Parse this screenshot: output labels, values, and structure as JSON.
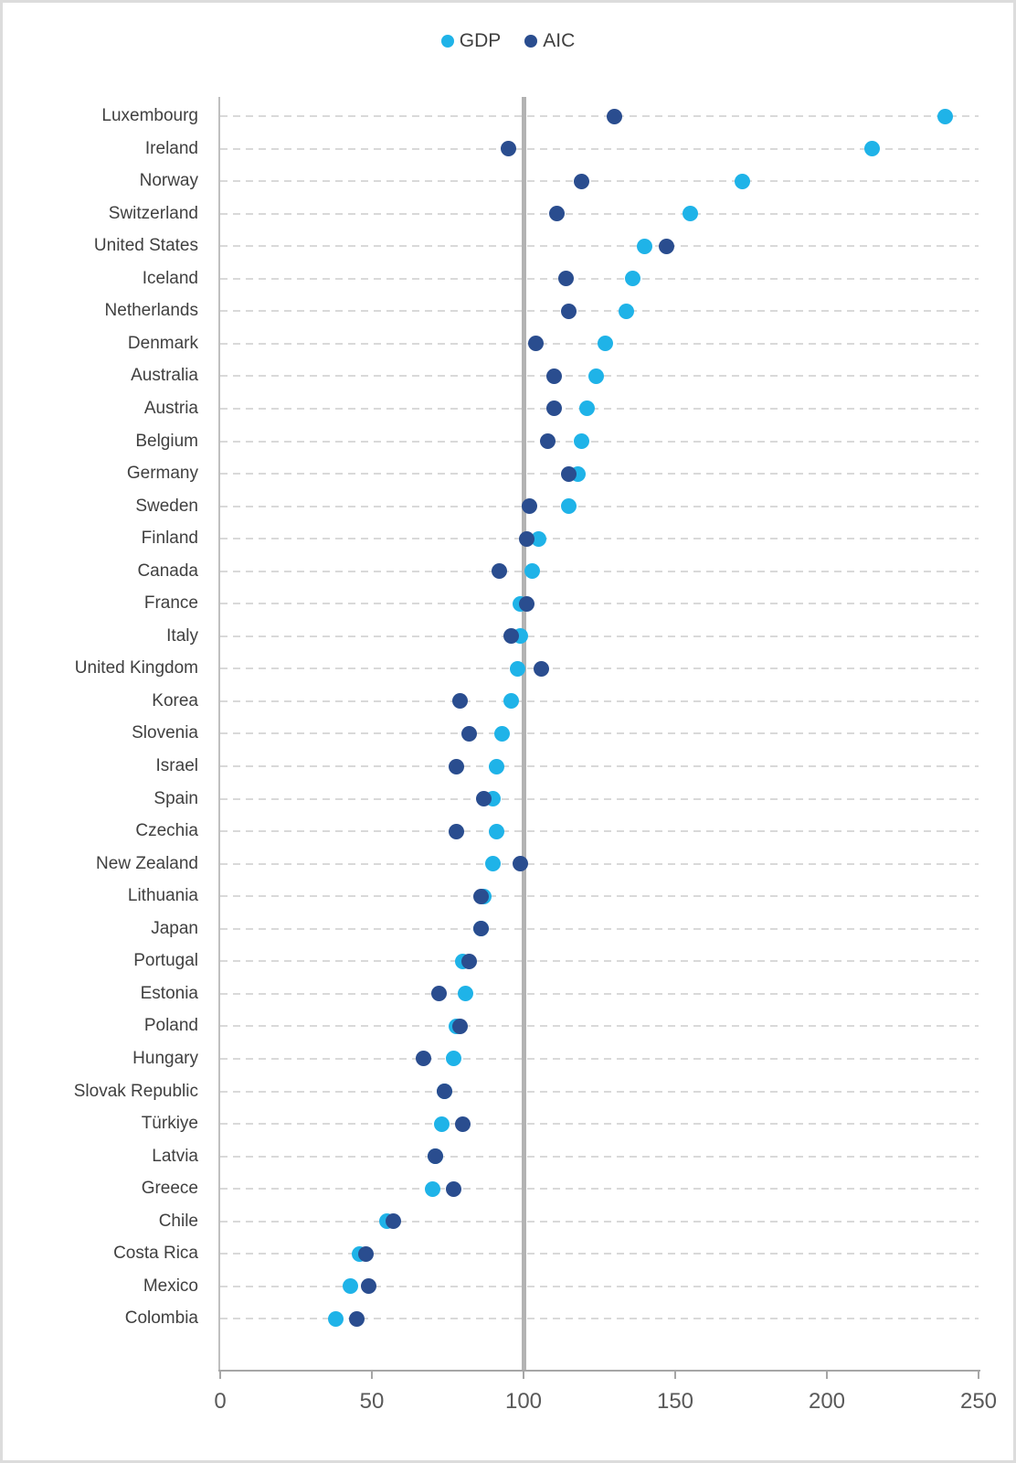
{
  "legend": {
    "items": [
      {
        "label": "GDP",
        "color": "#1fb3e8"
      },
      {
        "label": "AIC",
        "color": "#2a4d8f"
      }
    ]
  },
  "colors": {
    "gdp_dot": "#1fb3e8",
    "aic_dot": "#2a4d8f",
    "gridline": "#d9d9d9",
    "reference_line": "#b3b3b3",
    "axis": "#a6a6a6",
    "label_text": "#404040",
    "tick_text": "#595959"
  },
  "chart_data": {
    "type": "scatter",
    "title": "",
    "xlabel": "",
    "ylabel": "",
    "xlim": [
      0,
      250
    ],
    "xticks": [
      0,
      50,
      100,
      150,
      200,
      250
    ],
    "reference_line_x": 100,
    "grid": "horizontal dashed per category",
    "legend_position": "top-center",
    "categories": [
      "Luxembourg",
      "Ireland",
      "Norway",
      "Switzerland",
      "United States",
      "Iceland",
      "Netherlands",
      "Denmark",
      "Australia",
      "Austria",
      "Belgium",
      "Germany",
      "Sweden",
      "Finland",
      "Canada",
      "France",
      "Italy",
      "United Kingdom",
      "Korea",
      "Slovenia",
      "Israel",
      "Spain",
      "Czechia",
      "New Zealand",
      "Lithuania",
      "Japan",
      "Portugal",
      "Estonia",
      "Poland",
      "Hungary",
      "Slovak Republic",
      "Türkiye",
      "Latvia",
      "Greece",
      "Chile",
      "Costa Rica",
      "Mexico",
      "Colombia"
    ],
    "series": [
      {
        "name": "GDP",
        "color": "#1fb3e8",
        "values": [
          239,
          215,
          172,
          155,
          140,
          136,
          134,
          127,
          124,
          121,
          119,
          118,
          115,
          105,
          103,
          99,
          99,
          98,
          96,
          93,
          91,
          90,
          91,
          90,
          87,
          86,
          80,
          81,
          78,
          77,
          74,
          73,
          71,
          70,
          55,
          46,
          43,
          38
        ]
      },
      {
        "name": "AIC",
        "color": "#2a4d8f",
        "values": [
          130,
          95,
          119,
          111,
          147,
          114,
          115,
          104,
          110,
          110,
          108,
          115,
          102,
          101,
          92,
          101,
          96,
          106,
          79,
          82,
          78,
          87,
          78,
          99,
          86,
          86,
          82,
          72,
          79,
          67,
          74,
          80,
          71,
          77,
          57,
          48,
          49,
          45
        ]
      }
    ]
  }
}
